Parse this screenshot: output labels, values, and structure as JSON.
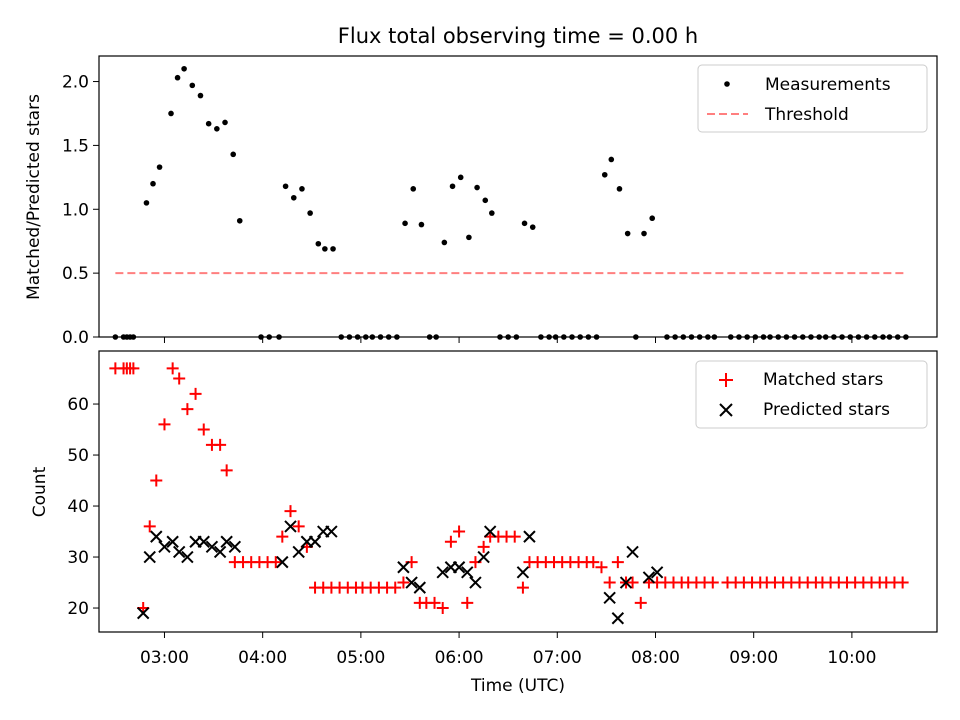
{
  "figure": {
    "title": "Flux total observing time = 0.00 h",
    "xlabel": "Time (UTC)"
  },
  "chart_data": [
    {
      "type": "scatter",
      "panel": "top",
      "ylabel": "Matched/Predicted stars",
      "xlim": [
        "02:20",
        "10:52"
      ],
      "ylim": [
        0,
        2.2
      ],
      "yticks": [
        "0.0",
        "0.5",
        "1.0",
        "1.5",
        "2.0"
      ],
      "legend_position": "top-right",
      "series": [
        {
          "name": "Measurements",
          "kind": "points",
          "color": "#000000",
          "points": [
            [
              "02:30",
              0
            ],
            [
              "02:35",
              0
            ],
            [
              "02:37",
              0
            ],
            [
              "02:39",
              0
            ],
            [
              "02:41",
              0
            ],
            [
              "02:49",
              1.05
            ],
            [
              "02:53",
              1.2
            ],
            [
              "02:57",
              1.33
            ],
            [
              "03:04",
              1.75
            ],
            [
              "03:08",
              2.03
            ],
            [
              "03:12",
              2.1
            ],
            [
              "03:17",
              1.97
            ],
            [
              "03:22",
              1.89
            ],
            [
              "03:27",
              1.67
            ],
            [
              "03:32",
              1.63
            ],
            [
              "03:37",
              1.68
            ],
            [
              "03:42",
              1.43
            ],
            [
              "03:46",
              0.91
            ],
            [
              "03:59",
              0
            ],
            [
              "04:04",
              0
            ],
            [
              "04:10",
              0
            ],
            [
              "04:14",
              1.18
            ],
            [
              "04:19",
              1.09
            ],
            [
              "04:24",
              1.16
            ],
            [
              "04:29",
              0.97
            ],
            [
              "04:34",
              0.73
            ],
            [
              "04:38",
              0.69
            ],
            [
              "04:43",
              0.69
            ],
            [
              "04:48",
              0
            ],
            [
              "04:53",
              0
            ],
            [
              "04:58",
              0
            ],
            [
              "05:03",
              0
            ],
            [
              "05:07",
              0
            ],
            [
              "05:12",
              0
            ],
            [
              "05:17",
              0
            ],
            [
              "05:22",
              0
            ],
            [
              "05:27",
              0.89
            ],
            [
              "05:32",
              1.16
            ],
            [
              "05:37",
              0.88
            ],
            [
              "05:42",
              0
            ],
            [
              "05:46",
              0
            ],
            [
              "05:51",
              0.74
            ],
            [
              "05:56",
              1.18
            ],
            [
              "06:01",
              1.25
            ],
            [
              "06:06",
              0.78
            ],
            [
              "06:11",
              1.17
            ],
            [
              "06:16",
              1.07
            ],
            [
              "06:20",
              0.97
            ],
            [
              "06:25",
              0
            ],
            [
              "06:30",
              0
            ],
            [
              "06:35",
              0
            ],
            [
              "06:40",
              0.89
            ],
            [
              "06:45",
              0.86
            ],
            [
              "06:50",
              0
            ],
            [
              "06:55",
              0
            ],
            [
              "06:59",
              0
            ],
            [
              "07:04",
              0
            ],
            [
              "07:09",
              0
            ],
            [
              "07:14",
              0
            ],
            [
              "07:19",
              0
            ],
            [
              "07:24",
              0
            ],
            [
              "07:29",
              1.27
            ],
            [
              "07:33",
              1.39
            ],
            [
              "07:38",
              1.16
            ],
            [
              "07:43",
              0.81
            ],
            [
              "07:48",
              0
            ],
            [
              "07:53",
              0.81
            ],
            [
              "07:58",
              0.93
            ],
            [
              "08:07",
              0
            ],
            [
              "08:12",
              0
            ],
            [
              "08:17",
              0
            ],
            [
              "08:22",
              0
            ],
            [
              "08:27",
              0
            ],
            [
              "08:32",
              0
            ],
            [
              "08:36",
              0
            ],
            [
              "08:46",
              0
            ],
            [
              "08:51",
              0
            ],
            [
              "08:56",
              0
            ],
            [
              "09:01",
              0
            ],
            [
              "09:06",
              0
            ],
            [
              "09:10",
              0
            ],
            [
              "09:15",
              0
            ],
            [
              "09:20",
              0
            ],
            [
              "09:25",
              0
            ],
            [
              "09:30",
              0
            ],
            [
              "09:35",
              0
            ],
            [
              "09:40",
              0
            ],
            [
              "09:44",
              0
            ],
            [
              "09:49",
              0
            ],
            [
              "09:54",
              0
            ],
            [
              "09:59",
              0
            ],
            [
              "10:04",
              0
            ],
            [
              "10:09",
              0
            ],
            [
              "10:14",
              0
            ],
            [
              "10:19",
              0
            ],
            [
              "10:23",
              0
            ],
            [
              "10:28",
              0
            ],
            [
              "10:33",
              0
            ]
          ]
        },
        {
          "name": "Threshold",
          "kind": "line",
          "color": "#ff7f7f",
          "dash": true,
          "x": [
            "02:30",
            "10:33"
          ],
          "y": [
            0.5,
            0.5
          ]
        }
      ]
    },
    {
      "type": "scatter",
      "panel": "bottom",
      "ylabel": "Count",
      "xlim": [
        "02:20",
        "10:52"
      ],
      "ylim": [
        15.3,
        70.4
      ],
      "yticks": [
        "20",
        "30",
        "40",
        "50",
        "60"
      ],
      "xticks": [
        "03:00",
        "04:00",
        "05:00",
        "06:00",
        "07:00",
        "08:00",
        "09:00",
        "10:00"
      ],
      "legend_position": "top-right",
      "series": [
        {
          "name": "Matched stars",
          "marker": "+",
          "color": "#ff0000",
          "points": [
            [
              "02:30",
              67
            ],
            [
              "02:35",
              67
            ],
            [
              "02:37",
              67
            ],
            [
              "02:39",
              67
            ],
            [
              "02:41",
              67
            ],
            [
              "02:47",
              20
            ],
            [
              "02:51",
              36
            ],
            [
              "02:55",
              45
            ],
            [
              "03:00",
              56
            ],
            [
              "03:05",
              67
            ],
            [
              "03:09",
              65
            ],
            [
              "03:14",
              59
            ],
            [
              "03:19",
              62
            ],
            [
              "03:24",
              55
            ],
            [
              "03:29",
              52
            ],
            [
              "03:34",
              52
            ],
            [
              "03:38",
              47
            ],
            [
              "03:43",
              29
            ],
            [
              "03:48",
              29
            ],
            [
              "03:53",
              29
            ],
            [
              "03:58",
              29
            ],
            [
              "04:03",
              29
            ],
            [
              "04:08",
              29
            ],
            [
              "04:12",
              34
            ],
            [
              "04:17",
              39
            ],
            [
              "04:22",
              36
            ],
            [
              "04:27",
              32
            ],
            [
              "04:32",
              24
            ],
            [
              "04:37",
              24
            ],
            [
              "04:42",
              24
            ],
            [
              "04:47",
              24
            ],
            [
              "04:52",
              24
            ],
            [
              "04:57",
              24
            ],
            [
              "05:01",
              24
            ],
            [
              "05:06",
              24
            ],
            [
              "05:11",
              24
            ],
            [
              "05:16",
              24
            ],
            [
              "05:21",
              24
            ],
            [
              "05:26",
              25
            ],
            [
              "05:31",
              29
            ],
            [
              "05:36",
              21
            ],
            [
              "05:40",
              21
            ],
            [
              "05:45",
              21
            ],
            [
              "05:50",
              20
            ],
            [
              "05:55",
              33
            ],
            [
              "06:00",
              35
            ],
            [
              "06:05",
              21
            ],
            [
              "06:10",
              29
            ],
            [
              "06:15",
              32
            ],
            [
              "06:19",
              34
            ],
            [
              "06:24",
              34
            ],
            [
              "06:29",
              34
            ],
            [
              "06:34",
              34
            ],
            [
              "06:39",
              24
            ],
            [
              "06:43",
              29
            ],
            [
              "06:48",
              29
            ],
            [
              "06:53",
              29
            ],
            [
              "06:58",
              29
            ],
            [
              "07:03",
              29
            ],
            [
              "07:08",
              29
            ],
            [
              "07:13",
              29
            ],
            [
              "07:18",
              29
            ],
            [
              "07:22",
              29
            ],
            [
              "07:27",
              28
            ],
            [
              "07:32",
              25
            ],
            [
              "07:37",
              29
            ],
            [
              "07:42",
              25
            ],
            [
              "07:46",
              25
            ],
            [
              "07:51",
              21
            ],
            [
              "07:56",
              25
            ],
            [
              "08:01",
              25
            ],
            [
              "08:06",
              25
            ],
            [
              "08:11",
              25
            ],
            [
              "08:16",
              25
            ],
            [
              "08:20",
              25
            ],
            [
              "08:25",
              25
            ],
            [
              "08:30",
              25
            ],
            [
              "08:35",
              25
            ],
            [
              "08:44",
              25
            ],
            [
              "08:49",
              25
            ],
            [
              "08:54",
              25
            ],
            [
              "08:59",
              25
            ],
            [
              "09:04",
              25
            ],
            [
              "09:08",
              25
            ],
            [
              "09:13",
              25
            ],
            [
              "09:18",
              25
            ],
            [
              "09:23",
              25
            ],
            [
              "09:28",
              25
            ],
            [
              "09:33",
              25
            ],
            [
              "09:38",
              25
            ],
            [
              "09:42",
              25
            ],
            [
              "09:47",
              25
            ],
            [
              "09:52",
              25
            ],
            [
              "09:57",
              25
            ],
            [
              "10:02",
              25
            ],
            [
              "10:07",
              25
            ],
            [
              "10:12",
              25
            ],
            [
              "10:17",
              25
            ],
            [
              "10:21",
              25
            ],
            [
              "10:26",
              25
            ],
            [
              "10:31",
              25
            ]
          ]
        },
        {
          "name": "Predicted stars",
          "marker": "x",
          "color": "#000000",
          "points": [
            [
              "02:47",
              19
            ],
            [
              "02:51",
              30
            ],
            [
              "02:55",
              34
            ],
            [
              "03:00",
              32
            ],
            [
              "03:05",
              33
            ],
            [
              "03:09",
              31
            ],
            [
              "03:14",
              30
            ],
            [
              "03:19",
              33
            ],
            [
              "03:24",
              33
            ],
            [
              "03:29",
              32
            ],
            [
              "03:34",
              31
            ],
            [
              "03:38",
              33
            ],
            [
              "03:43",
              32
            ],
            [
              "04:12",
              29
            ],
            [
              "04:17",
              36
            ],
            [
              "04:22",
              31
            ],
            [
              "04:27",
              33
            ],
            [
              "04:32",
              33
            ],
            [
              "04:37",
              35
            ],
            [
              "04:42",
              35
            ],
            [
              "05:26",
              28
            ],
            [
              "05:31",
              25
            ],
            [
              "05:36",
              24
            ],
            [
              "05:50",
              27
            ],
            [
              "05:55",
              28
            ],
            [
              "06:00",
              28
            ],
            [
              "06:05",
              27
            ],
            [
              "06:10",
              25
            ],
            [
              "06:15",
              30
            ],
            [
              "06:19",
              35
            ],
            [
              "06:39",
              27
            ],
            [
              "06:43",
              34
            ],
            [
              "07:32",
              22
            ],
            [
              "07:37",
              18
            ],
            [
              "07:42",
              25
            ],
            [
              "07:46",
              31
            ],
            [
              "07:56",
              26
            ],
            [
              "08:01",
              27
            ]
          ]
        }
      ]
    }
  ]
}
